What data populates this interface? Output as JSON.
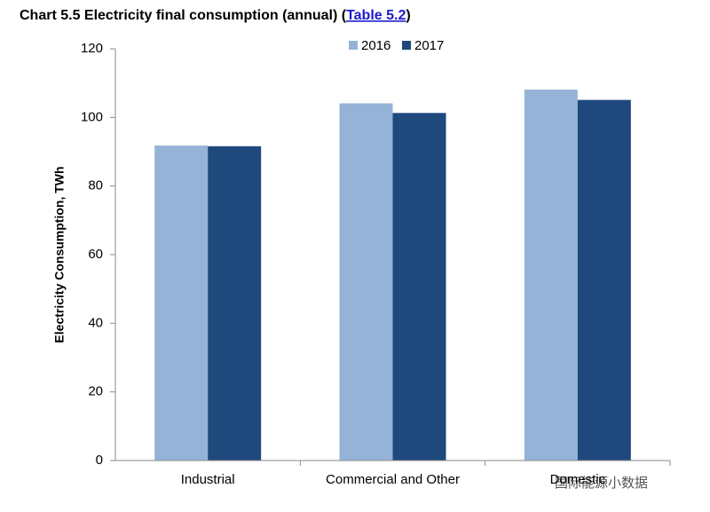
{
  "chart_data": {
    "type": "bar",
    "title": "Chart 5.5 Electricity final consumption (annual) (",
    "title_link": "Table 5.2",
    "title_end": ")",
    "y_label": "Electricity Consumption, TWh",
    "categories": [
      "Industrial",
      "Commercial and Other",
      "Domestic"
    ],
    "series": [
      {
        "name": "2016",
        "color": "#95b3d7",
        "values": [
          91.8,
          104.1,
          108.1
        ]
      },
      {
        "name": "2017",
        "color": "#1f497d",
        "values": [
          91.6,
          101.3,
          105.1
        ]
      }
    ],
    "ylim": [
      0,
      120
    ],
    "yticks": [
      0,
      20,
      40,
      60,
      80,
      100,
      120
    ],
    "grid": false,
    "legend": "top",
    "watermark": "国际能源小数据"
  }
}
